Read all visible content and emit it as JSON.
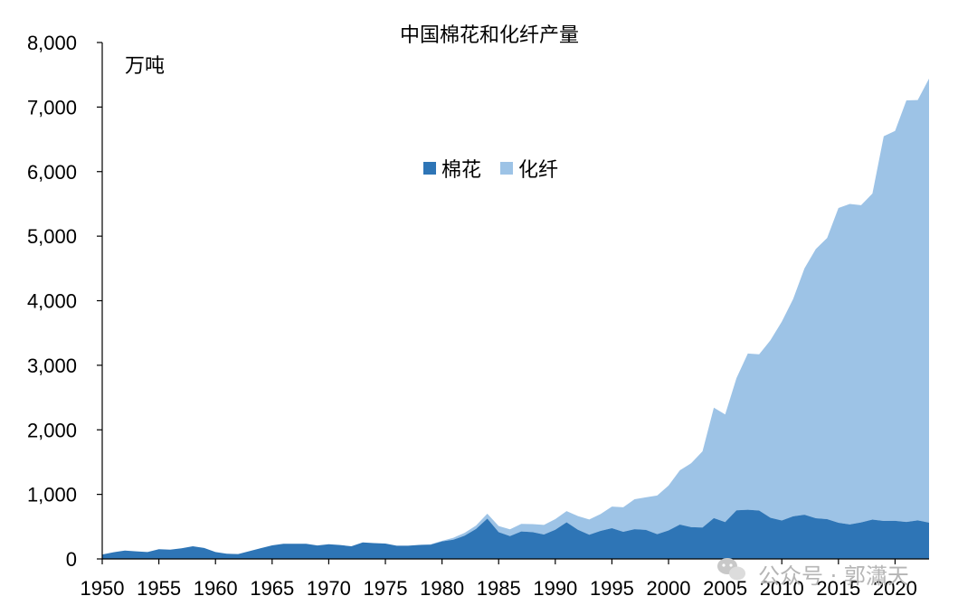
{
  "chart_data": {
    "type": "area",
    "stacked": true,
    "title": "中国棉花和化纤产量",
    "ylabel": "万吨",
    "xlabel": "",
    "xlim": [
      1950,
      2023
    ],
    "ylim": [
      0,
      8000
    ],
    "x_ticks": [
      1950,
      1955,
      1960,
      1965,
      1970,
      1975,
      1980,
      1985,
      1990,
      1995,
      2000,
      2005,
      2010,
      2015,
      2020
    ],
    "y_ticks": [
      0,
      1000,
      2000,
      3000,
      4000,
      5000,
      6000,
      7000,
      8000
    ],
    "y_tick_labels": [
      "0",
      "1,000",
      "2,000",
      "3,000",
      "4,000",
      "5,000",
      "6,000",
      "7,000",
      "8,000"
    ],
    "legend_position": "center",
    "grid": false,
    "series": [
      {
        "name": "棉花",
        "color": "#2e75b6",
        "x": [
          1950,
          1951,
          1952,
          1953,
          1954,
          1955,
          1956,
          1957,
          1958,
          1959,
          1960,
          1961,
          1962,
          1963,
          1964,
          1965,
          1966,
          1967,
          1968,
          1969,
          1970,
          1971,
          1972,
          1973,
          1974,
          1975,
          1976,
          1977,
          1978,
          1979,
          1980,
          1981,
          1982,
          1983,
          1984,
          1985,
          1986,
          1987,
          1988,
          1989,
          1990,
          1991,
          1992,
          1993,
          1994,
          1995,
          1996,
          1997,
          1998,
          1999,
          2000,
          2001,
          2002,
          2003,
          2004,
          2005,
          2006,
          2007,
          2008,
          2009,
          2010,
          2011,
          2012,
          2013,
          2014,
          2015,
          2016,
          2017,
          2018,
          2019,
          2020,
          2021,
          2022,
          2023
        ],
        "values": [
          69,
          103,
          130,
          117,
          106,
          151,
          144,
          164,
          196,
          170,
          106,
          80,
          75,
          120,
          166,
          210,
          234,
          235,
          235,
          208,
          228,
          215,
          196,
          256,
          246,
          238,
          205,
          205,
          217,
          221,
          271,
          297,
          360,
          464,
          626,
          415,
          354,
          425,
          415,
          379,
          451,
          568,
          451,
          374,
          434,
          477,
          420,
          460,
          450,
          383,
          442,
          532,
          492,
          486,
          632,
          571,
          753,
          762,
          749,
          638,
          596,
          660,
          684,
          630,
          616,
          560,
          534,
          565,
          610,
          589,
          591,
          573,
          598,
          562
        ]
      },
      {
        "name": "化纤",
        "color": "#9dc3e6",
        "x": [
          1950,
          1951,
          1952,
          1953,
          1954,
          1955,
          1956,
          1957,
          1958,
          1959,
          1960,
          1961,
          1962,
          1963,
          1964,
          1965,
          1966,
          1967,
          1968,
          1969,
          1970,
          1971,
          1972,
          1973,
          1974,
          1975,
          1976,
          1977,
          1978,
          1979,
          1980,
          1981,
          1982,
          1983,
          1984,
          1985,
          1986,
          1987,
          1988,
          1989,
          1990,
          1991,
          1992,
          1993,
          1994,
          1995,
          1996,
          1997,
          1998,
          1999,
          2000,
          2001,
          2002,
          2003,
          2004,
          2005,
          2006,
          2007,
          2008,
          2009,
          2010,
          2011,
          2012,
          2013,
          2014,
          2015,
          2016,
          2017,
          2018,
          2019,
          2020,
          2021,
          2022,
          2023
        ],
        "values": [
          0,
          0,
          0,
          0,
          0,
          0,
          0,
          0,
          0,
          0,
          0,
          0,
          0,
          0,
          0,
          0,
          0,
          0,
          0,
          0,
          0,
          0,
          0,
          0,
          0,
          0,
          0,
          0,
          0,
          7,
          10,
          30,
          45,
          52,
          74,
          95,
          104,
          118,
          125,
          148,
          165,
          173,
          213,
          237,
          262,
          334,
          380,
          465,
          505,
          600,
          694,
          841,
          991,
          1181,
          1711,
          1668,
          2050,
          2420,
          2420,
          2750,
          3080,
          3366,
          3816,
          4170,
          4356,
          4876,
          4965,
          4915,
          5050,
          5960,
          6040,
          6530,
          6510,
          6880
        ]
      }
    ]
  },
  "watermark": {
    "text": "公众号 · 郭瀟天",
    "icon": "wechat-icon"
  }
}
